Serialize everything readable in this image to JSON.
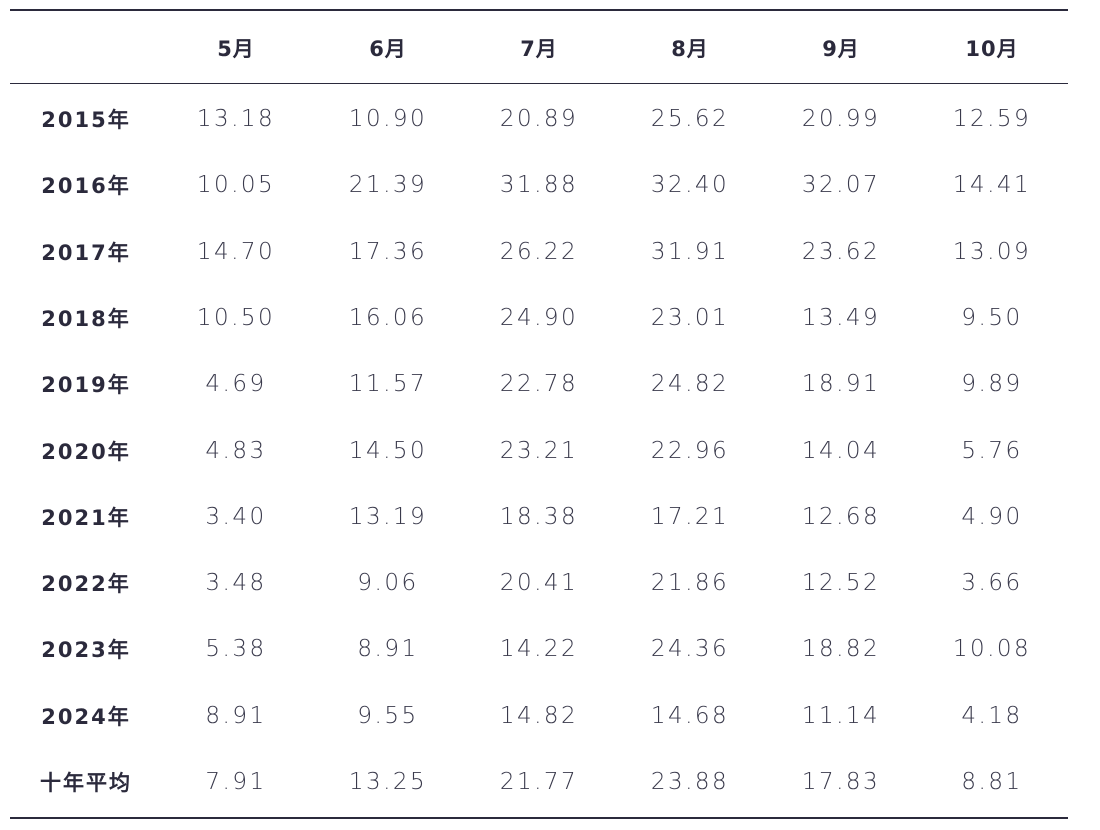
{
  "table": {
    "columns": [
      "5月",
      "6月",
      "7月",
      "8月",
      "9月",
      "10月"
    ],
    "rows": [
      {
        "label": "2015年",
        "values": [
          "13.18",
          "10.90",
          "20.89",
          "25.62",
          "20.99",
          "12.59"
        ]
      },
      {
        "label": "2016年",
        "values": [
          "10.05",
          "21.39",
          "31.88",
          "32.40",
          "32.07",
          "14.41"
        ]
      },
      {
        "label": "2017年",
        "values": [
          "14.70",
          "17.36",
          "26.22",
          "31.91",
          "23.62",
          "13.09"
        ]
      },
      {
        "label": "2018年",
        "values": [
          "10.50",
          "16.06",
          "24.90",
          "23.01",
          "13.49",
          "9.50"
        ]
      },
      {
        "label": "2019年",
        "values": [
          "4.69",
          "11.57",
          "22.78",
          "24.82",
          "18.91",
          "9.89"
        ]
      },
      {
        "label": "2020年",
        "values": [
          "4.83",
          "14.50",
          "23.21",
          "22.96",
          "14.04",
          "5.76"
        ]
      },
      {
        "label": "2021年",
        "values": [
          "3.40",
          "13.19",
          "18.38",
          "17.21",
          "12.68",
          "4.90"
        ]
      },
      {
        "label": "2022年",
        "values": [
          "3.48",
          "9.06",
          "20.41",
          "21.86",
          "12.52",
          "3.66"
        ]
      },
      {
        "label": "2023年",
        "values": [
          "5.38",
          "8.91",
          "14.22",
          "24.36",
          "18.82",
          "10.08"
        ]
      },
      {
        "label": "2024年",
        "values": [
          "8.91",
          "9.55",
          "14.82",
          "14.68",
          "11.14",
          "4.18"
        ]
      },
      {
        "label": "十年平均",
        "values": [
          "7.91",
          "13.25",
          "21.77",
          "23.88",
          "17.83",
          "8.81"
        ]
      }
    ]
  }
}
